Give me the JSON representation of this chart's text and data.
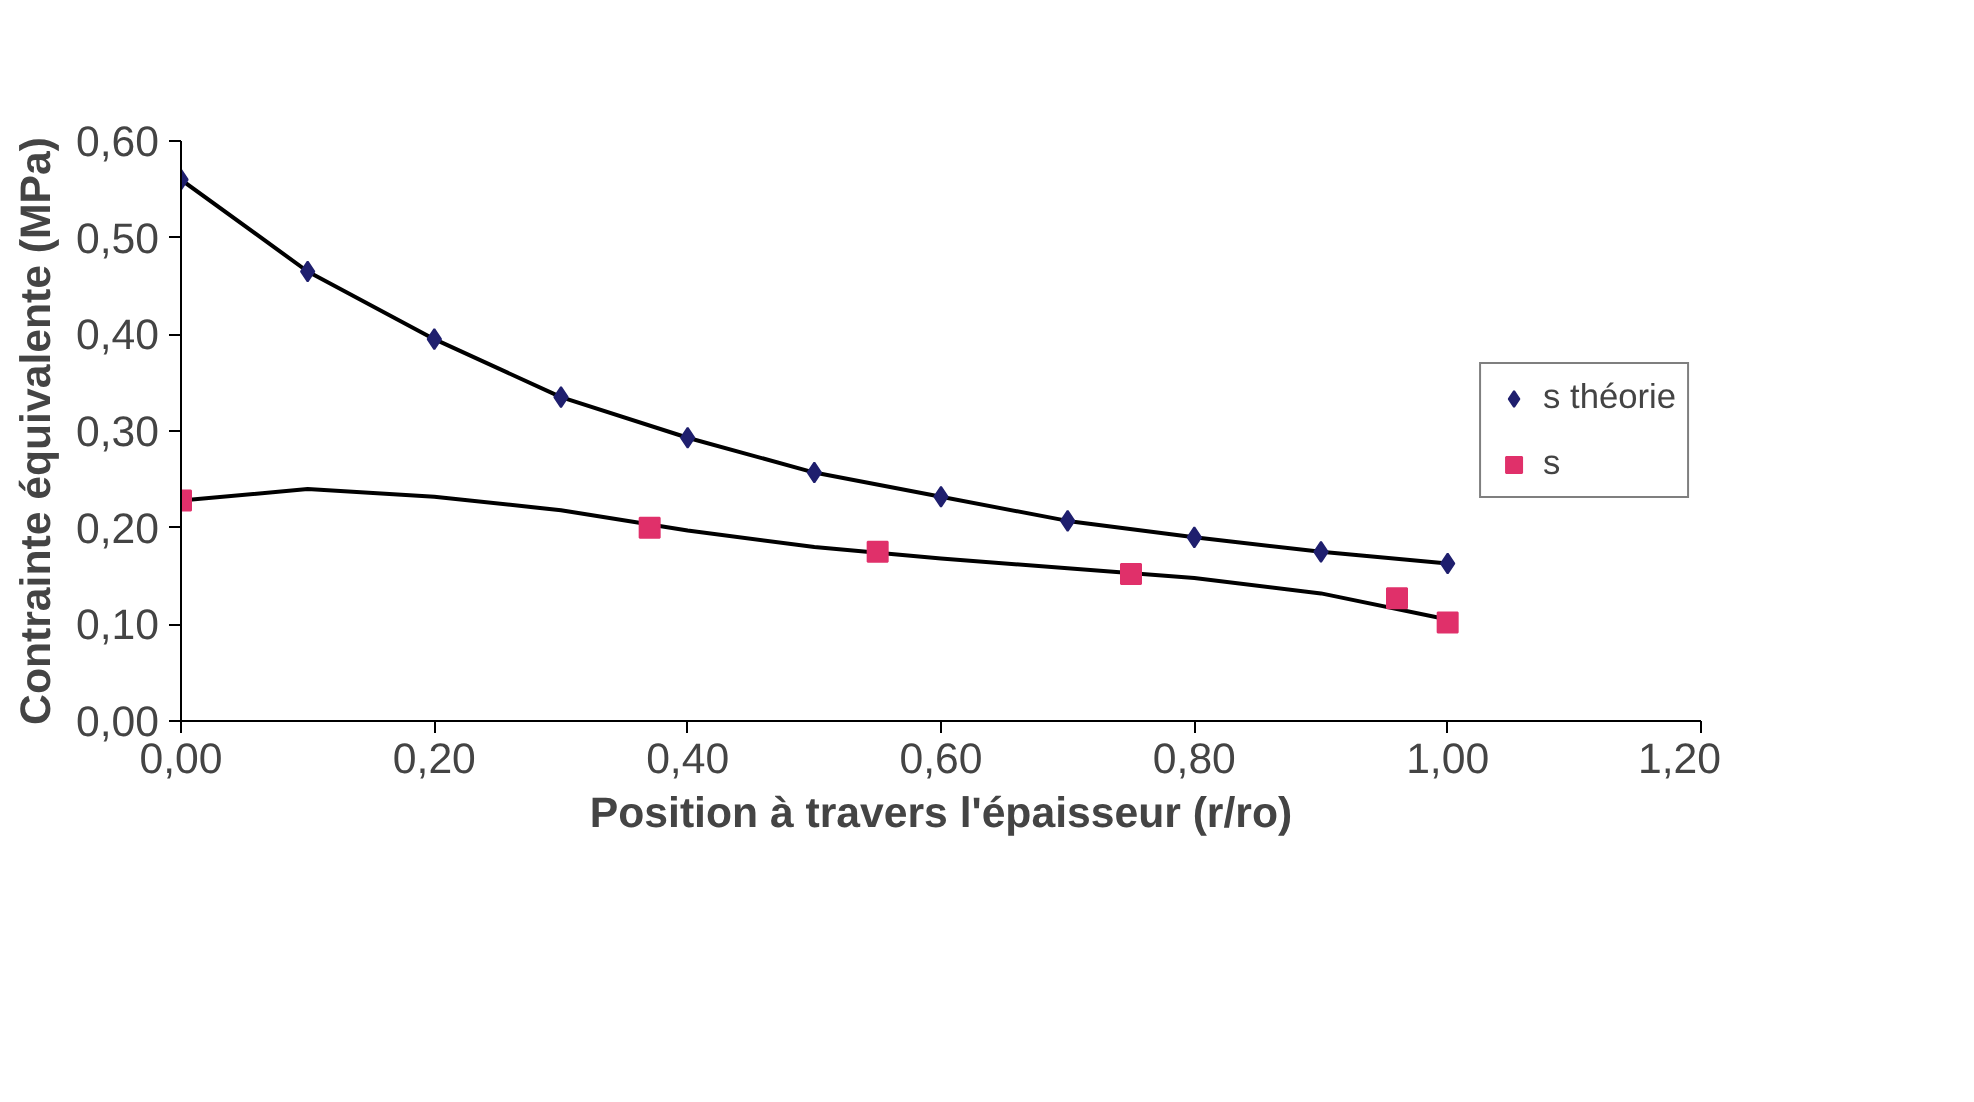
{
  "chart_data": {
    "type": "scatter",
    "xlabel": "Position à travers l'épaisseur (r/ro)",
    "ylabel": "Contrainte équivalente (MPa)",
    "xlim": [
      0,
      1.2
    ],
    "xticks": [
      {
        "value": 0,
        "label": "0,00"
      },
      {
        "value": 0.2,
        "label": "0,20"
      },
      {
        "value": 0.4,
        "label": "0,40"
      },
      {
        "value": 0.6,
        "label": "0,60"
      },
      {
        "value": 0.8,
        "label": "0,80"
      },
      {
        "value": 1.0,
        "label": "1,00"
      },
      {
        "value": 1.2,
        "label": "1,20"
      }
    ],
    "ylim": [
      0,
      0.6
    ],
    "yticks": [
      {
        "value": 0,
        "label": "0,00"
      },
      {
        "value": 0.1,
        "label": "0,10"
      },
      {
        "value": 0.2,
        "label": "0,20"
      },
      {
        "value": 0.3,
        "label": "0,30"
      },
      {
        "value": 0.4,
        "label": "0,40"
      },
      {
        "value": 0.5,
        "label": "0,50"
      },
      {
        "value": 0.6,
        "label": "0,60"
      }
    ],
    "grid": false,
    "legend": "right",
    "series": [
      {
        "type": "line",
        "color": "#000000",
        "marker": "none",
        "x": [
          0,
          0.1,
          0.2,
          0.3,
          0.4,
          0.5,
          0.6,
          0.7,
          0.8,
          0.9,
          1.0
        ],
        "values": [
          0.56,
          0.465,
          0.395,
          0.335,
          0.293,
          0.257,
          0.232,
          0.207,
          0.19,
          0.175,
          0.163
        ]
      },
      {
        "type": "line",
        "color": "#000000",
        "marker": "none",
        "x": [
          0,
          0.1,
          0.2,
          0.3,
          0.4,
          0.5,
          0.6,
          0.7,
          0.8,
          0.9,
          1.0
        ],
        "values": [
          0.228,
          0.24,
          0.232,
          0.218,
          0.197,
          0.18,
          0.168,
          0.158,
          0.148,
          0.132,
          0.105
        ]
      },
      {
        "name": "s théorie",
        "color": "#1f1f6e",
        "marker": "diamond",
        "x": [
          0,
          0.1,
          0.2,
          0.3,
          0.4,
          0.5,
          0.6,
          0.7,
          0.8,
          0.9,
          1.0
        ],
        "values": [
          0.56,
          0.465,
          0.395,
          0.335,
          0.293,
          0.257,
          0.232,
          0.207,
          0.19,
          0.175,
          0.163
        ]
      },
      {
        "name": "s",
        "color": "#e0306a",
        "marker": "square",
        "x": [
          0,
          0.37,
          0.55,
          0.75,
          0.96,
          1.0
        ],
        "values": [
          0.228,
          0.2,
          0.175,
          0.152,
          0.127,
          0.102
        ]
      }
    ]
  }
}
